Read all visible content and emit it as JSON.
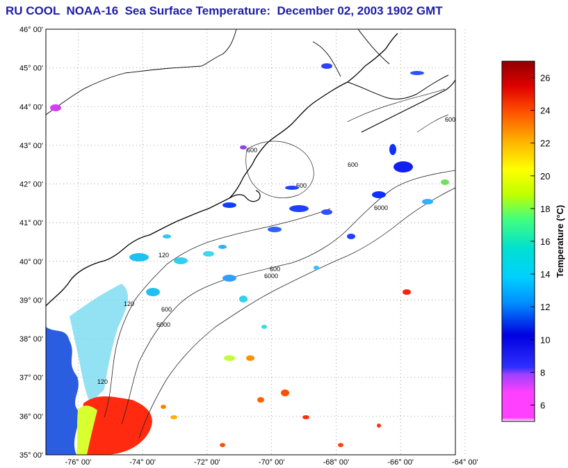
{
  "title": "RU COOL  NOAA-16  Sea Surface Temperature:  December 02, 2003 1902 GMT",
  "map": {
    "lat_labels": [
      "46° 00'",
      "45° 00'",
      "44° 00'",
      "43° 00'",
      "42° 00'",
      "41° 00'",
      "40° 00'",
      "39° 00'",
      "38° 00'",
      "37° 00'",
      "36° 00'",
      "35° 00'"
    ],
    "lon_labels": [
      "-76° 00'",
      "-74° 00'",
      "-72° 00'",
      "-70° 00'",
      "-68° 00'",
      "-66° 00'",
      "-64° 00'"
    ],
    "lat_range": [
      35,
      46
    ],
    "lon_range": [
      -77,
      -64.3
    ],
    "isobath_labels": [
      "120",
      "600",
      "6000"
    ],
    "colors": {
      "land": "#ffffff",
      "coast": "#000000",
      "grid": "#8a8a8a"
    }
  },
  "colorbar": {
    "title": "Temperature (°C)",
    "ticks": [
      "26",
      "24",
      "22",
      "20",
      "18",
      "16",
      "14",
      "12",
      "10",
      "8",
      "6"
    ],
    "range": [
      5,
      27
    ],
    "stops": [
      "#ffffff",
      "#ff40ff",
      "#c040ff",
      "#4040ff",
      "#0000e0",
      "#0080ff",
      "#00c0ff",
      "#00e0e0",
      "#40ff80",
      "#c0ff00",
      "#ffff00",
      "#ffc000",
      "#ff8000",
      "#ff3000",
      "#e00000",
      "#900000"
    ]
  }
}
